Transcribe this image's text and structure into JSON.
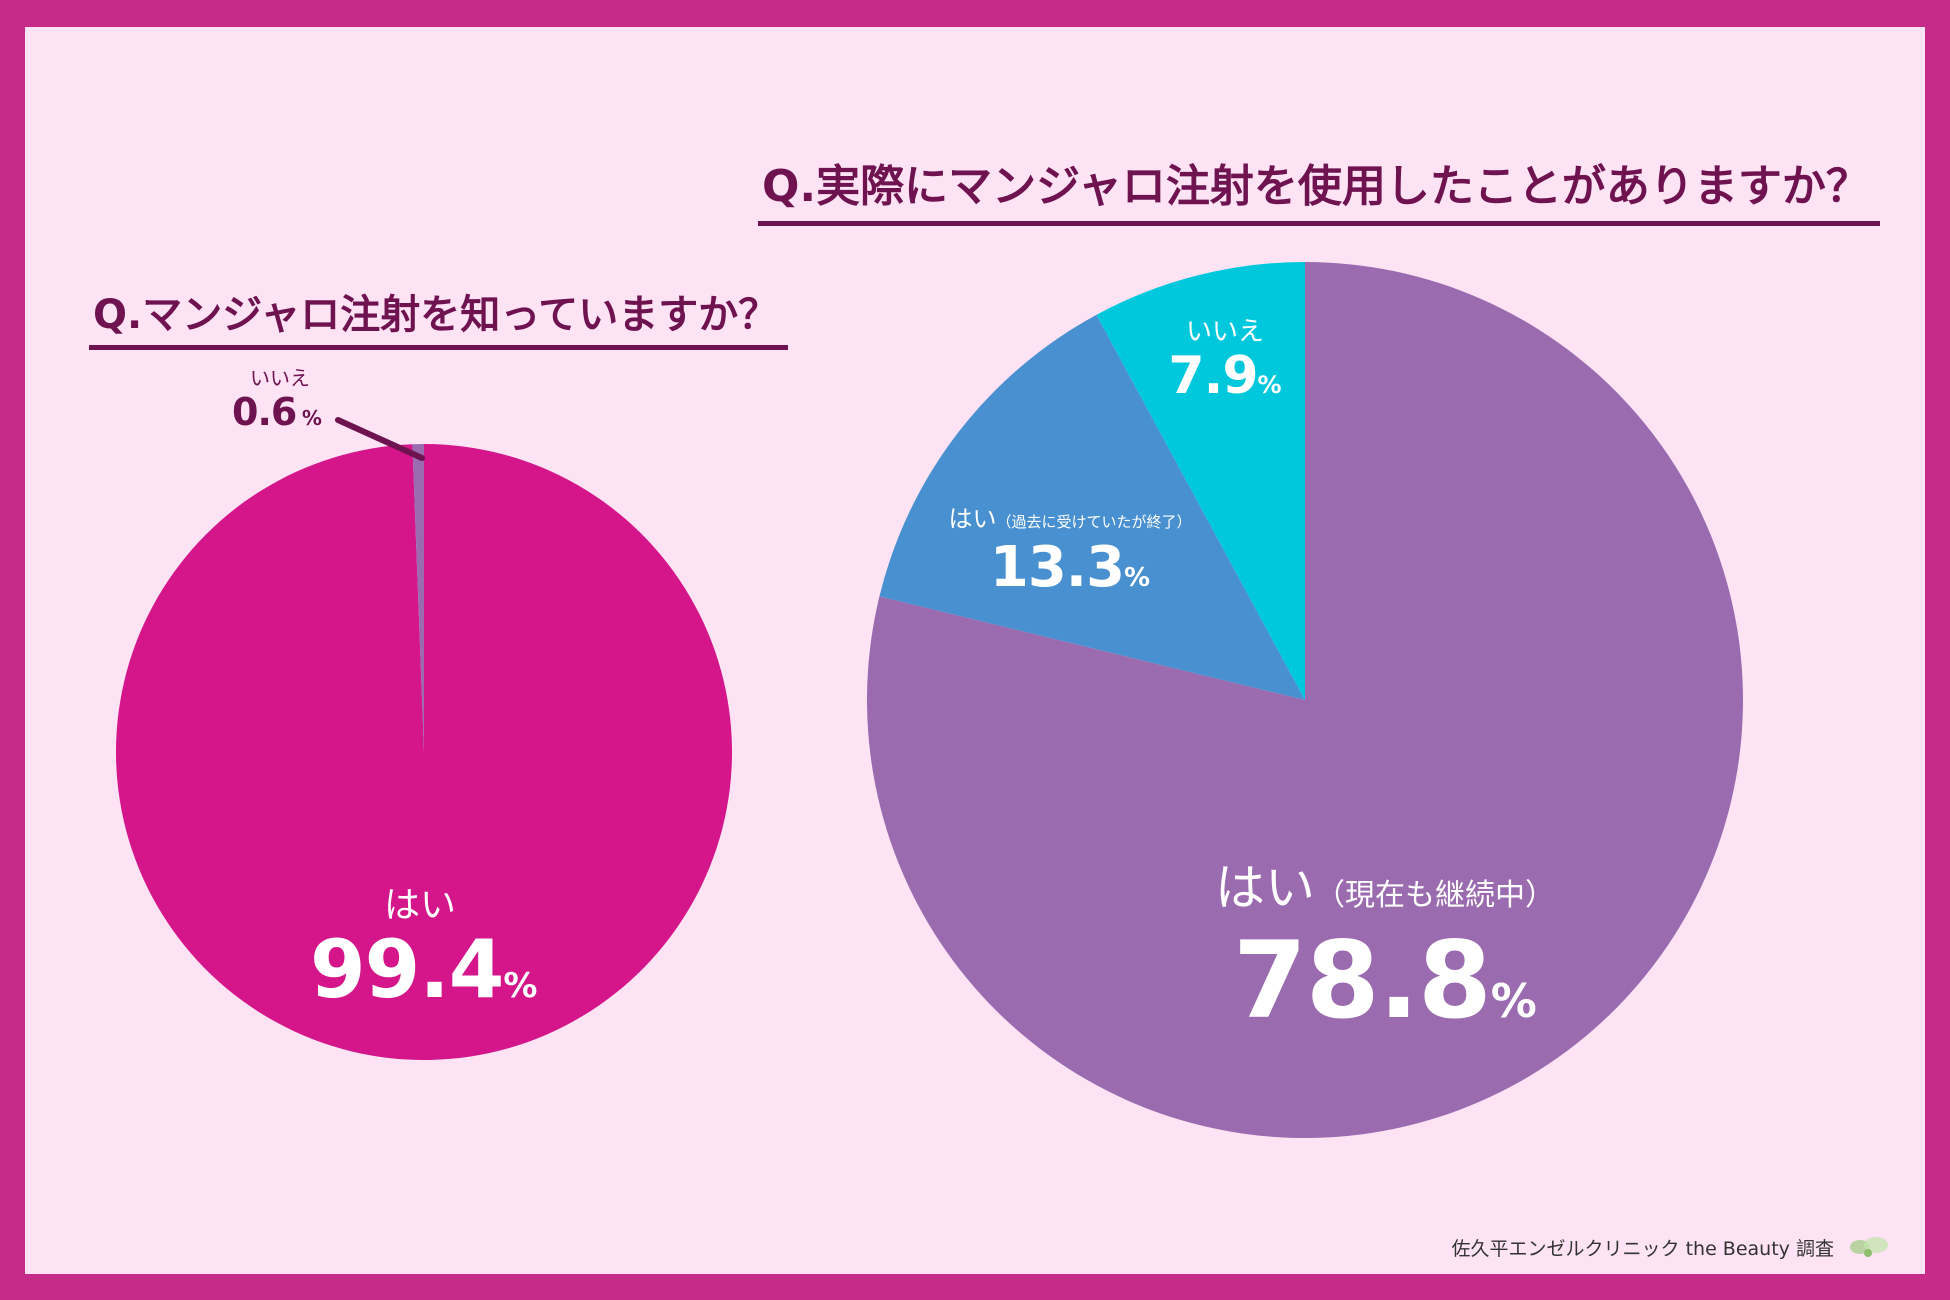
{
  "chart_data": [
    {
      "type": "pie",
      "title": "Q.マンジャロ注射を知っていますか？",
      "slices": [
        {
          "label": "はい",
          "value": 99.4,
          "color": "#d4168a"
        },
        {
          "label": "いいえ",
          "value": 0.6,
          "color": "#9b6bb0"
        }
      ],
      "unit": "%"
    },
    {
      "type": "pie",
      "title": "Q.実際にマンジャロ注射を使用したことがありますか？",
      "slices": [
        {
          "label": "はい",
          "note": "（現在も継続中）",
          "value": 78.8,
          "color": "#9b6bb0"
        },
        {
          "label": "はい",
          "note": "（過去に受けていたが終了）",
          "value": 13.3,
          "color": "#4890d0"
        },
        {
          "label": "いいえ",
          "value": 7.9,
          "color": "#00c8dc"
        }
      ],
      "unit": "%"
    }
  ],
  "labels": {
    "chart1_yes_name": "はい",
    "chart1_yes_value": "99.4",
    "chart1_no_name": "いいえ",
    "chart1_no_value": "0.6",
    "chart2_current_name": "はい",
    "chart2_current_note": "（現在も継続中）",
    "chart2_current_value": "78.8",
    "chart2_past_name": "はい",
    "chart2_past_note": "（過去に受けていたが終了）",
    "chart2_past_value": "13.3",
    "chart2_no_name": "いいえ",
    "chart2_no_value": "7.9",
    "percent": "%"
  },
  "credit": "佐久平エンゼルクリニック the Beauty 調査",
  "colors": {
    "frame": "#c62b8a",
    "background": "#fde3f4",
    "title": "#6e1250"
  }
}
